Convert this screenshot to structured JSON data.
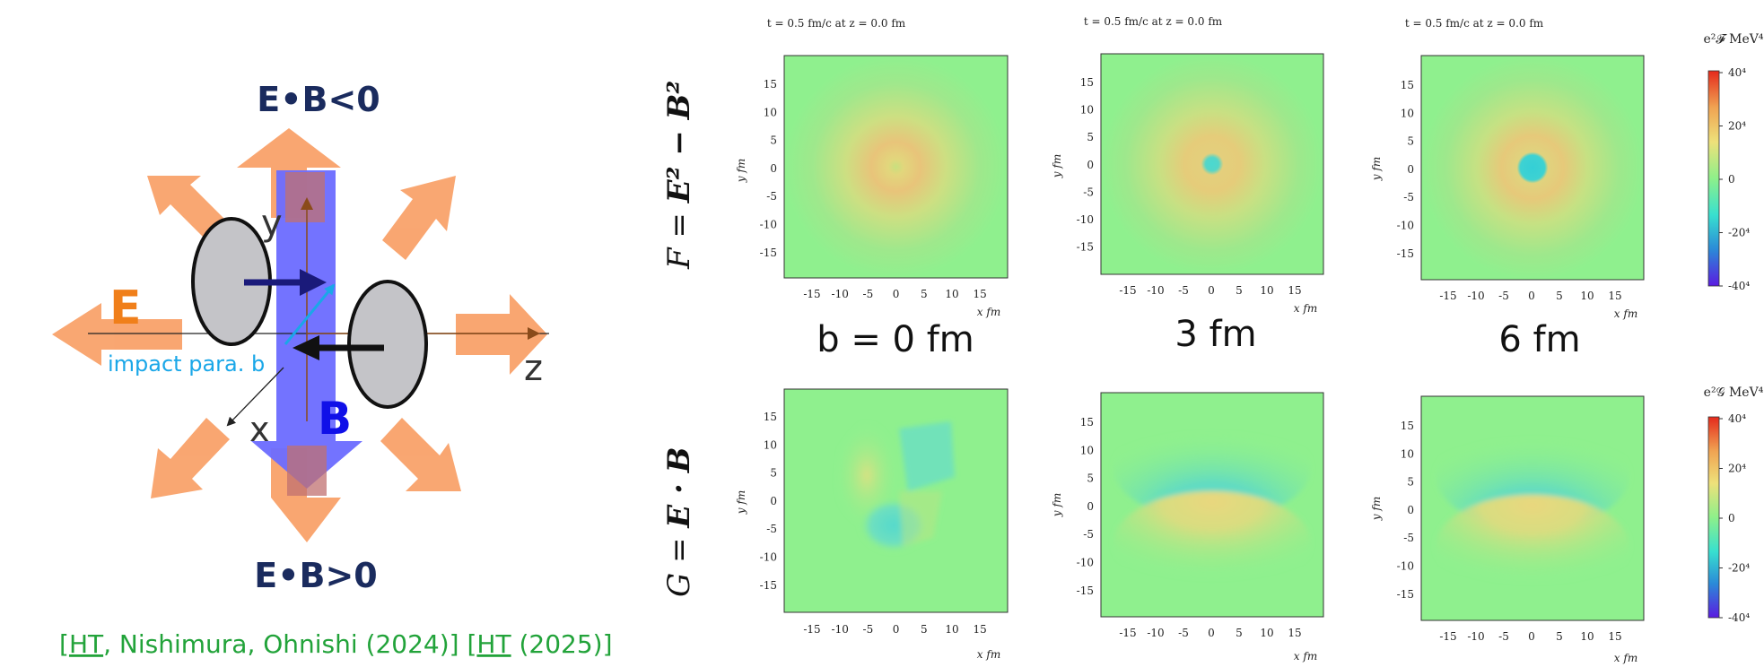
{
  "diagram": {
    "label_eb_neg": "E•B<0",
    "label_eb_pos": "E•B>0",
    "label_e": "E",
    "label_b": "B",
    "axis_y": "y",
    "axis_z": "z",
    "axis_x": "x",
    "impact_label": "impact para. b",
    "citation": {
      "open1": "[",
      "ht1": "HT",
      "rest1": ", Nishimura, Ohnishi (2024)]",
      "open2": " [",
      "ht2": "HT",
      "rest2": " (2025)]"
    },
    "colors": {
      "e_label": "#f07f1a",
      "b_label": "#1010e8",
      "eb_label": "#1a2b5e",
      "impact": "#1aa7e8",
      "citation": "#22a33a",
      "arrow_orange": "#f9a26a",
      "band_blue": "#6b6bff"
    }
  },
  "panels": {
    "row_labels": {
      "top": {
        "lhs": "F",
        "eq": " = ",
        "rhs": "E² − B²"
      },
      "bottom": {
        "lhs": "G",
        "eq": " = ",
        "rhs": "E · B"
      }
    },
    "title": "t = 0.5 fm/c at z = 0.0 fm",
    "ylabel": "y fm",
    "xlabel": "x fm",
    "x_ticks": [
      "-15",
      "-10",
      "-5",
      "0",
      "5",
      "10",
      "15"
    ],
    "y_ticks": [
      "15",
      "10",
      "5",
      "0",
      "-5",
      "-10",
      "-15"
    ],
    "b_labels": [
      "b = 0 fm",
      "3 fm",
      "6 fm"
    ],
    "colorbar_top": {
      "title": "e²𝓕 MeV⁴",
      "ticks": [
        "40⁴",
        "20⁴",
        "0",
        "-20⁴",
        "-40⁴"
      ]
    },
    "colorbar_bottom": {
      "title": "e²𝒢 MeV⁴",
      "ticks": [
        "40⁴",
        "20⁴",
        "0",
        "-20⁴",
        "-40⁴"
      ]
    },
    "colormap": [
      "#5a1be0",
      "#2b8ad8",
      "#38e0cf",
      "#8ef08a",
      "#eee17a",
      "#f0a352",
      "#e52a1c"
    ]
  }
}
